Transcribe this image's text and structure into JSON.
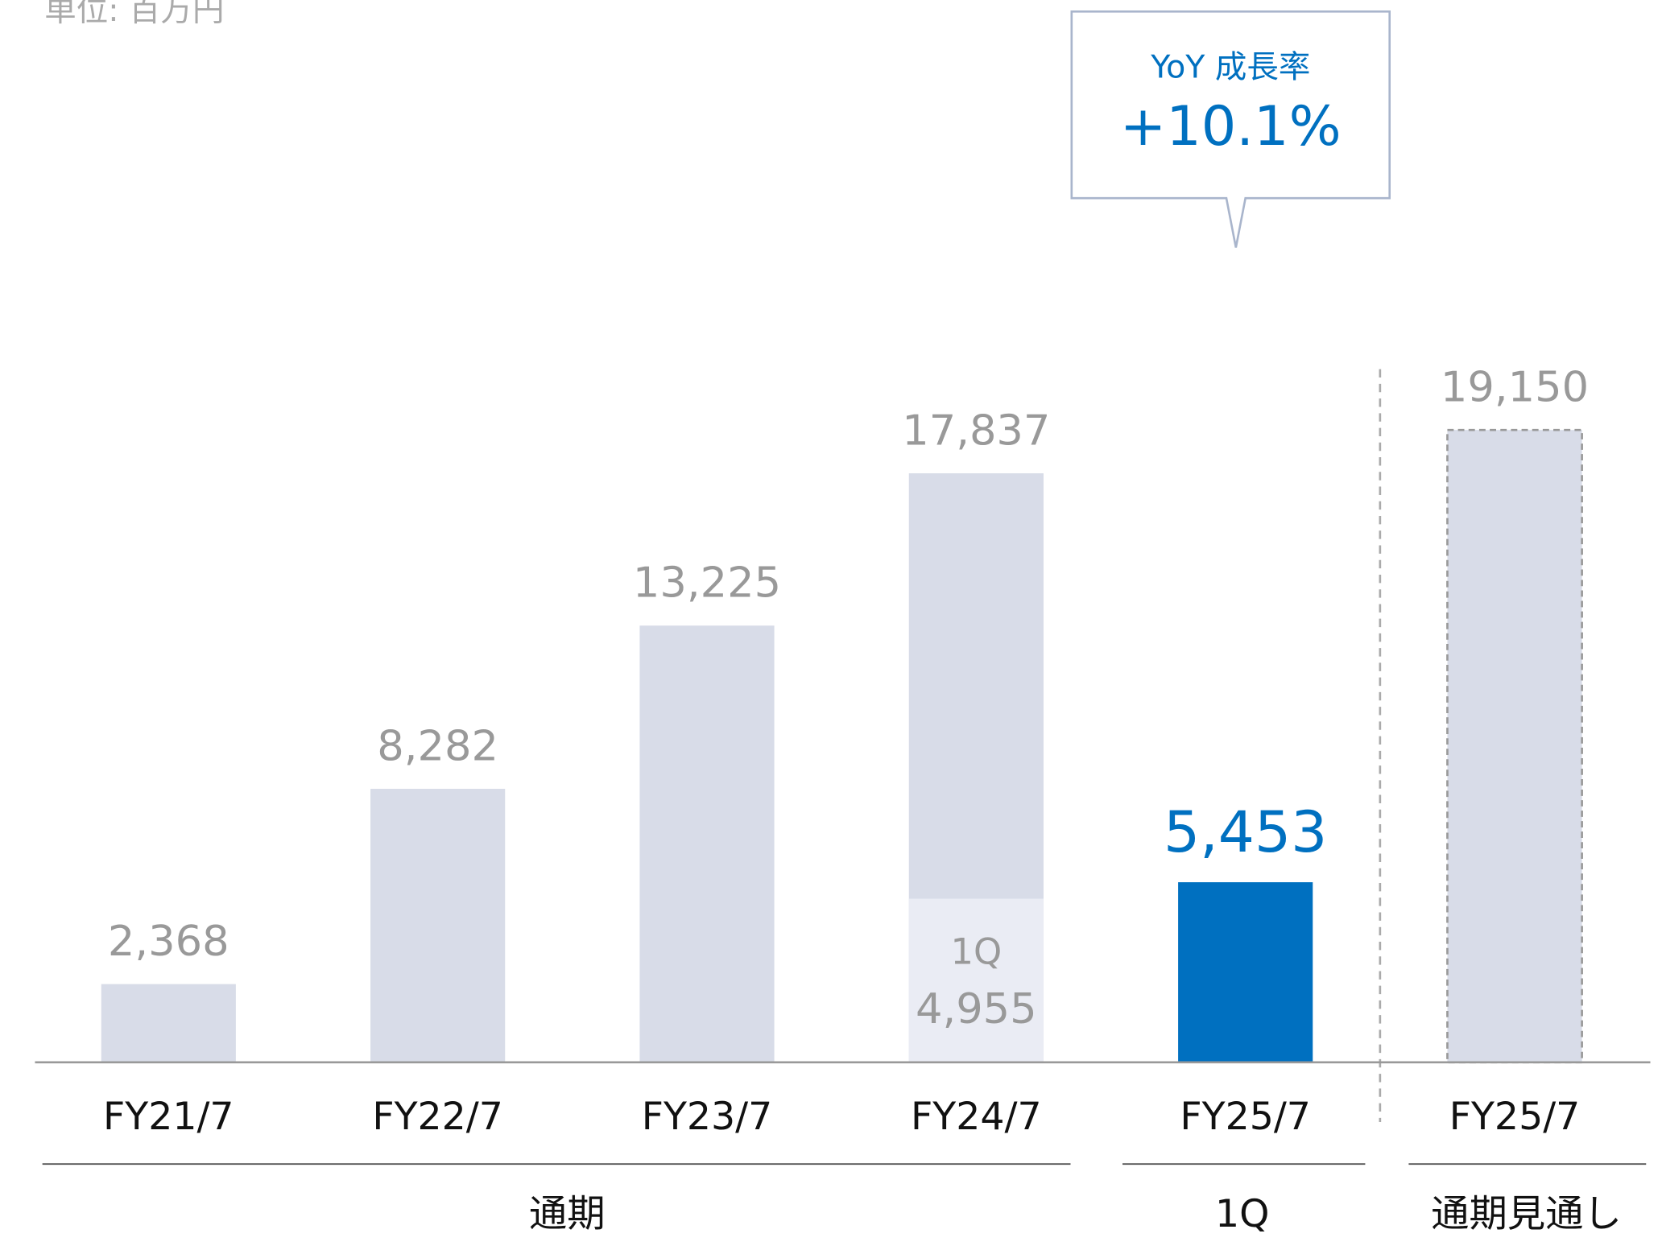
{
  "chart_data": {
    "type": "bar",
    "unit": "単位: 百万円",
    "categories": [
      "FY21/7",
      "FY22/7",
      "FY23/7",
      "FY24/7",
      "FY25/7",
      "FY25/7"
    ],
    "values": [
      2368,
      8282,
      13225,
      17837,
      5453,
      19150
    ],
    "value_labels": [
      "2,368",
      "8,282",
      "13,225",
      "17,837",
      "5,453",
      "19,150"
    ],
    "colors": [
      "#d8dce8",
      "#d8dce8",
      "#d8dce8",
      "#d8dce8",
      "#0070c0",
      "#d8dce8"
    ],
    "label_colors": [
      "#999999",
      "#999999",
      "#999999",
      "#999999",
      "#0070c0",
      "#999999"
    ],
    "dashed": [
      false,
      false,
      false,
      false,
      false,
      true
    ],
    "overlay": {
      "label": "1Q",
      "values": [
        null,
        null,
        null,
        4955,
        null,
        null
      ],
      "value_labels": [
        null,
        null,
        null,
        "4,955",
        null,
        null
      ],
      "color": "#eaecf4"
    },
    "groups": [
      "通期",
      "1Q",
      "通期見通し"
    ],
    "callout": {
      "label": "YoY 成長率",
      "value": "+10.1%"
    }
  }
}
